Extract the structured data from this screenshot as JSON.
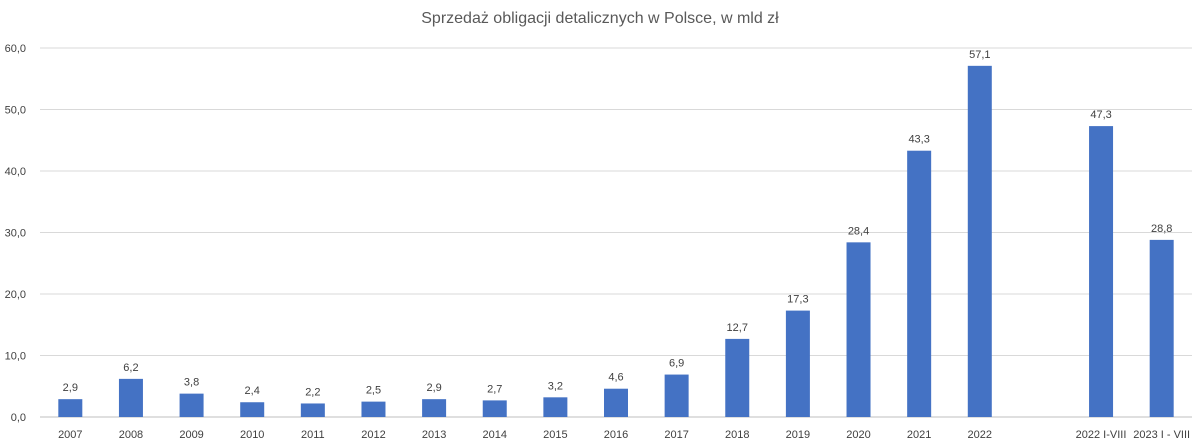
{
  "chart_data": {
    "type": "bar",
    "title": "Sprzedaż obligacji detalicznych w Polsce, w mld zł",
    "xlabel": "",
    "ylabel": "",
    "ylim": [
      0,
      60
    ],
    "y_ticks": [
      "0,0",
      "10,0",
      "20,0",
      "30,0",
      "40,0",
      "50,0",
      "60,0"
    ],
    "grid": true,
    "legend": "none",
    "bar_color": "#4472C4",
    "categories": [
      "2007",
      "2008",
      "2009",
      "2010",
      "2011",
      "2012",
      "2013",
      "2014",
      "2015",
      "2016",
      "2017",
      "2018",
      "2019",
      "2020",
      "2021",
      "2022",
      "",
      "2022 I-VIII",
      "2023 I - VIII"
    ],
    "values": [
      2.9,
      6.2,
      3.8,
      2.4,
      2.2,
      2.5,
      2.9,
      2.7,
      3.2,
      4.6,
      6.9,
      12.7,
      17.3,
      28.4,
      43.3,
      57.1,
      null,
      47.3,
      28.8
    ],
    "value_labels": [
      "2,9",
      "6,2",
      "3,8",
      "2,4",
      "2,2",
      "2,5",
      "2,9",
      "2,7",
      "3,2",
      "4,6",
      "6,9",
      "12,7",
      "17,3",
      "28,4",
      "43,3",
      "57,1",
      "",
      "47,3",
      "28,8"
    ]
  }
}
